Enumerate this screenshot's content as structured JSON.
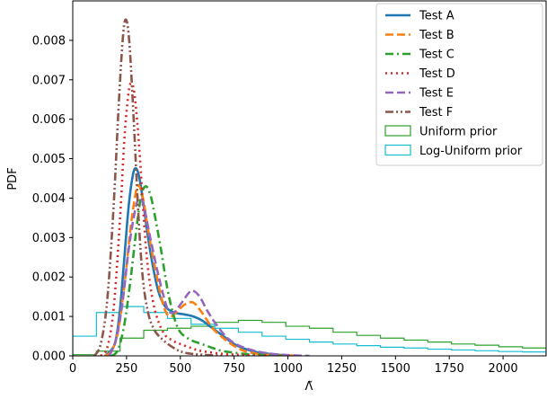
{
  "chart_data": {
    "type": "line",
    "title": "",
    "xlabel": "Λ̃",
    "ylabel": "PDF",
    "xlim": [
      0,
      2200
    ],
    "ylim": [
      0,
      0.009
    ],
    "grid": false,
    "legend_placement": "top-right",
    "x_ticks": [
      "0",
      "250",
      "500",
      "750",
      "1000",
      "1250",
      "1500",
      "1750",
      "2000"
    ],
    "y_ticks": [
      "0.000",
      "0.001",
      "0.002",
      "0.003",
      "0.004",
      "0.005",
      "0.006",
      "0.007",
      "0.008"
    ],
    "series": [
      {
        "name": "Test A",
        "color": "#1f77b4",
        "dash": "solid",
        "points": [
          [
            150,
            0
          ],
          [
            180,
            0.00015
          ],
          [
            200,
            0.0004
          ],
          [
            220,
            0.0012
          ],
          [
            240,
            0.0025
          ],
          [
            260,
            0.0038
          ],
          [
            280,
            0.0046
          ],
          [
            295,
            0.00475
          ],
          [
            310,
            0.0045
          ],
          [
            330,
            0.0038
          ],
          [
            350,
            0.003
          ],
          [
            375,
            0.0022
          ],
          [
            400,
            0.0016
          ],
          [
            430,
            0.00125
          ],
          [
            470,
            0.0011
          ],
          [
            520,
            0.00105
          ],
          [
            560,
            0.001
          ],
          [
            600,
            0.0009
          ],
          [
            650,
            0.0007
          ],
          [
            700,
            0.0005
          ],
          [
            750,
            0.0003
          ],
          [
            800,
            0.00018
          ],
          [
            850,
            0.0001
          ],
          [
            900,
            6e-05
          ],
          [
            950,
            3e-05
          ],
          [
            1000,
            1e-05
          ],
          [
            1050,
            0
          ]
        ]
      },
      {
        "name": "Test B",
        "color": "#ff7f0e",
        "dash": "dashed",
        "points": [
          [
            150,
            0
          ],
          [
            180,
            0.00012
          ],
          [
            210,
            0.0006
          ],
          [
            240,
            0.0018
          ],
          [
            270,
            0.0033
          ],
          [
            295,
            0.0042
          ],
          [
            310,
            0.0043
          ],
          [
            330,
            0.0039
          ],
          [
            350,
            0.0032
          ],
          [
            380,
            0.0023
          ],
          [
            420,
            0.0013
          ],
          [
            450,
            0.001
          ],
          [
            480,
            0.0011
          ],
          [
            520,
            0.0013
          ],
          [
            560,
            0.00135
          ],
          [
            600,
            0.0011
          ],
          [
            650,
            0.0007
          ],
          [
            700,
            0.00045
          ],
          [
            750,
            0.00025
          ],
          [
            800,
            0.00012
          ],
          [
            850,
            6e-05
          ],
          [
            900,
            3e-05
          ],
          [
            1000,
            1e-05
          ],
          [
            1050,
            0
          ]
        ]
      },
      {
        "name": "Test C",
        "color": "#2ca02c",
        "dash": "dashdot",
        "points": [
          [
            180,
            0
          ],
          [
            210,
            0.00015
          ],
          [
            240,
            0.0008
          ],
          [
            270,
            0.002
          ],
          [
            300,
            0.0034
          ],
          [
            320,
            0.0041
          ],
          [
            340,
            0.0043
          ],
          [
            360,
            0.0041
          ],
          [
            380,
            0.0036
          ],
          [
            410,
            0.0027
          ],
          [
            440,
            0.0017
          ],
          [
            470,
            0.001
          ],
          [
            500,
            0.0006
          ],
          [
            550,
            0.0004
          ],
          [
            600,
            0.0003
          ],
          [
            650,
            0.0002
          ],
          [
            700,
            0.00012
          ],
          [
            800,
            5e-05
          ],
          [
            900,
            2e-05
          ],
          [
            1000,
            0
          ]
        ]
      },
      {
        "name": "Test D",
        "color": "#d62728",
        "dash": "dotted",
        "points": [
          [
            130,
            0
          ],
          [
            160,
            0.0002
          ],
          [
            190,
            0.0012
          ],
          [
            220,
            0.0035
          ],
          [
            240,
            0.0055
          ],
          [
            260,
            0.0067
          ],
          [
            275,
            0.0069
          ],
          [
            290,
            0.0065
          ],
          [
            310,
            0.0052
          ],
          [
            330,
            0.0035
          ],
          [
            350,
            0.0022
          ],
          [
            380,
            0.0012
          ],
          [
            420,
            0.0006
          ],
          [
            460,
            0.0004
          ],
          [
            500,
            0.0003
          ],
          [
            550,
            0.0002
          ],
          [
            600,
            0.00012
          ],
          [
            700,
            5e-05
          ],
          [
            800,
            2e-05
          ],
          [
            900,
            0
          ]
        ]
      },
      {
        "name": "Test E",
        "color": "#9467bd",
        "dash": "dashed",
        "points": [
          [
            170,
            0
          ],
          [
            200,
            0.0004
          ],
          [
            230,
            0.0013
          ],
          [
            260,
            0.0027
          ],
          [
            290,
            0.0037
          ],
          [
            310,
            0.004
          ],
          [
            330,
            0.0038
          ],
          [
            360,
            0.003
          ],
          [
            400,
            0.002
          ],
          [
            440,
            0.0012
          ],
          [
            470,
            0.0011
          ],
          [
            500,
            0.0013
          ],
          [
            540,
            0.0016
          ],
          [
            560,
            0.00165
          ],
          [
            590,
            0.0015
          ],
          [
            630,
            0.0011
          ],
          [
            680,
            0.0007
          ],
          [
            730,
            0.0004
          ],
          [
            800,
            0.0002
          ],
          [
            900,
            7e-05
          ],
          [
            1000,
            2e-05
          ],
          [
            1100,
            0
          ]
        ]
      },
      {
        "name": "Test F",
        "color": "#8c564b",
        "dash": "dashdotdot",
        "points": [
          [
            100,
            0
          ],
          [
            130,
            0.0003
          ],
          [
            160,
            0.0014
          ],
          [
            190,
            0.0038
          ],
          [
            215,
            0.0065
          ],
          [
            235,
            0.0082
          ],
          [
            250,
            0.0085
          ],
          [
            265,
            0.0078
          ],
          [
            285,
            0.0058
          ],
          [
            305,
            0.0036
          ],
          [
            325,
            0.002
          ],
          [
            350,
            0.0011
          ],
          [
            380,
            0.00065
          ],
          [
            420,
            0.0004
          ],
          [
            470,
            0.0002
          ],
          [
            520,
            8e-05
          ],
          [
            600,
            3e-05
          ],
          [
            700,
            0
          ]
        ]
      }
    ],
    "histograms": [
      {
        "name": "Uniform prior",
        "color": "#2ca02c",
        "bin_width": 110,
        "bins": [
          [
            0,
            3e-05
          ],
          [
            110,
            0.00012
          ],
          [
            220,
            0.00045
          ],
          [
            330,
            0.00065
          ],
          [
            440,
            0.0007
          ],
          [
            550,
            0.00075
          ],
          [
            660,
            0.00085
          ],
          [
            770,
            0.0009
          ],
          [
            880,
            0.00085
          ],
          [
            990,
            0.00075
          ],
          [
            1100,
            0.0007
          ],
          [
            1210,
            0.0006
          ],
          [
            1320,
            0.00052
          ],
          [
            1430,
            0.00045
          ],
          [
            1540,
            0.0004
          ],
          [
            1650,
            0.00035
          ],
          [
            1760,
            0.0003
          ],
          [
            1870,
            0.00027
          ],
          [
            1980,
            0.00023
          ],
          [
            2090,
            0.0002
          ]
        ]
      },
      {
        "name": "Log-Uniform prior",
        "color": "#17becf",
        "bin_width": 110,
        "bins": [
          [
            0,
            0.0005
          ],
          [
            110,
            0.0011
          ],
          [
            220,
            0.00125
          ],
          [
            330,
            0.0011
          ],
          [
            440,
            0.00095
          ],
          [
            550,
            0.0008
          ],
          [
            660,
            0.0007
          ],
          [
            770,
            0.0006
          ],
          [
            880,
            0.0005
          ],
          [
            990,
            0.00042
          ],
          [
            1100,
            0.00035
          ],
          [
            1210,
            0.0003
          ],
          [
            1320,
            0.00026
          ],
          [
            1430,
            0.00022
          ],
          [
            1540,
            0.0002
          ],
          [
            1650,
            0.00017
          ],
          [
            1760,
            0.00015
          ],
          [
            1870,
            0.00013
          ],
          [
            1980,
            0.00011
          ],
          [
            2090,
            0.0001
          ]
        ]
      }
    ]
  }
}
